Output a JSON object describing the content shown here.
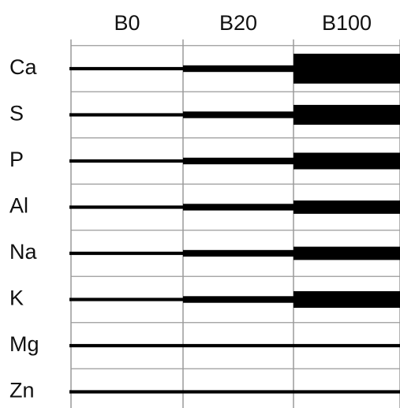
{
  "chart_data": {
    "type": "table",
    "columns": [
      "B0",
      "B20",
      "B100"
    ],
    "rows": [
      "Ca",
      "S",
      "P",
      "Al",
      "Na",
      "K",
      "Mg",
      "Zn"
    ],
    "values": [
      [
        1,
        2,
        9
      ],
      [
        1,
        2,
        6
      ],
      [
        1,
        2,
        5
      ],
      [
        1,
        2,
        4
      ],
      [
        1,
        2,
        4
      ],
      [
        1,
        2,
        5
      ],
      [
        1,
        1,
        1
      ],
      [
        1,
        1,
        1
      ]
    ],
    "title": "",
    "xlabel": "",
    "ylabel": "",
    "grid": true,
    "colors": {
      "bar": "#000000",
      "grid": "#9a9a9a",
      "text": "#111111"
    }
  }
}
